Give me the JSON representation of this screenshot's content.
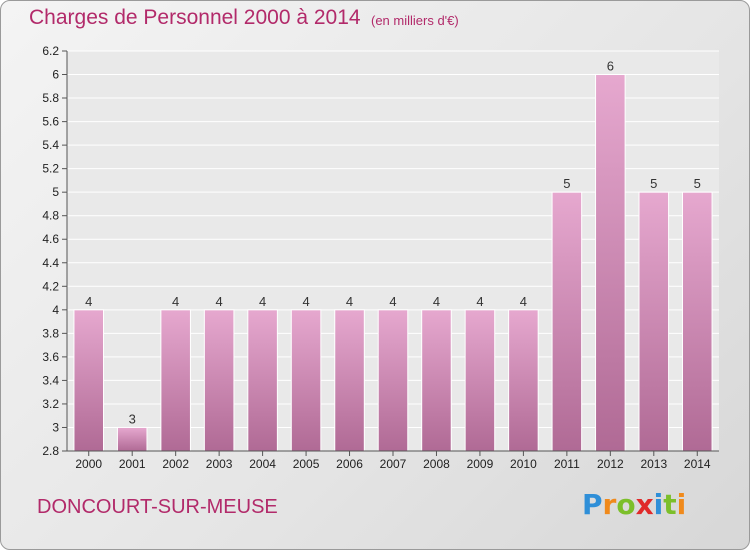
{
  "title": "Charges de Personnel 2000 à 2014",
  "subtitle": "(en milliers d'€)",
  "commune": "DONCOURT-SUR-MEUSE",
  "logo": {
    "letters": [
      "P",
      "r",
      "o",
      "x",
      "i",
      "t",
      "i"
    ]
  },
  "colors": {
    "title": "#b22a6a",
    "bar_light": "#e6a8cf",
    "bar_dark": "#b06a95",
    "logo": [
      "#2f8fd8",
      "#f08a1c",
      "#7cbf2a",
      "#e02a2a",
      "#2f8fd8",
      "#7cbf2a",
      "#f08a1c"
    ]
  },
  "chart_data": {
    "type": "bar",
    "title": "Charges de Personnel 2000 à 2014",
    "subtitle": "(en milliers d'€)",
    "xlabel": "",
    "ylabel": "",
    "grid": true,
    "categories": [
      "2000",
      "2001",
      "2002",
      "2003",
      "2004",
      "2005",
      "2006",
      "2007",
      "2008",
      "2009",
      "2010",
      "2011",
      "2012",
      "2013",
      "2014"
    ],
    "values": [
      4,
      3,
      4,
      4,
      4,
      4,
      4,
      4,
      4,
      4,
      4,
      5,
      6,
      5,
      5
    ],
    "data_labels": [
      "4",
      "3",
      "4",
      "4",
      "4",
      "4",
      "4",
      "4",
      "4",
      "4",
      "4",
      "5",
      "6",
      "5",
      "5"
    ],
    "y_ticks": [
      {
        "label": "2.8",
        "pos": 0
      },
      {
        "label": "3",
        "pos": 1
      },
      {
        "label": "3.2",
        "pos": 2
      },
      {
        "label": "3.4",
        "pos": 3
      },
      {
        "label": "3.6",
        "pos": 4
      },
      {
        "label": "3.8",
        "pos": 5
      },
      {
        "label": "4",
        "pos": 6
      },
      {
        "label": "4.2",
        "pos": 7
      },
      {
        "label": "4.4",
        "pos": 8
      },
      {
        "label": "4.6",
        "pos": 9
      },
      {
        "label": "4.8",
        "pos": 10
      },
      {
        "label": "5",
        "pos": 11
      },
      {
        "label": "5.2",
        "pos": 12
      },
      {
        "label": "5.4",
        "pos": 13
      },
      {
        "label": "5.6",
        "pos": 14
      },
      {
        "label": "5.8",
        "pos": 15
      },
      {
        "label": "6",
        "pos": 16
      },
      {
        "label": "6.2",
        "pos": 17
      }
    ],
    "value_to_tick_pos": {
      "3": 1,
      "4": 6,
      "5": 11,
      "6": 16
    }
  }
}
